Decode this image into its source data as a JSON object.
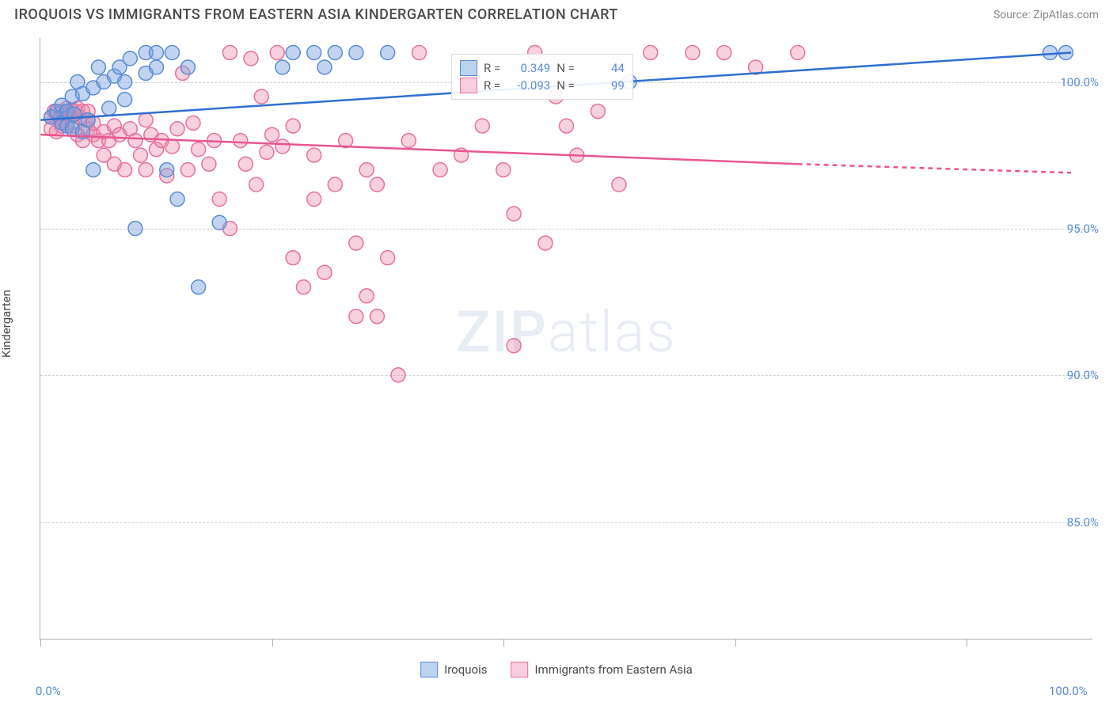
{
  "header": {
    "title": "IROQUOIS VS IMMIGRANTS FROM EASTERN ASIA KINDERGARTEN CORRELATION CHART",
    "source": "Source: ZipAtlas.com"
  },
  "axes": {
    "y_label": "Kindergarten",
    "x_min": 0.0,
    "x_max": 100.0,
    "y_min": 81.0,
    "y_max": 101.5,
    "y_ticks": [
      85.0,
      90.0,
      95.0,
      100.0
    ],
    "y_tick_labels": [
      "85.0%",
      "90.0%",
      "95.0%",
      "100.0%"
    ],
    "x_ticks": [
      0.0,
      100.0
    ],
    "x_tick_labels": [
      "0.0%",
      "100.0%"
    ],
    "x_markers": [
      0,
      22,
      44,
      66,
      88
    ],
    "grid_color": "#d0d0d0",
    "axis_color": "#b0b0b0"
  },
  "watermark": {
    "prefix": "ZIP",
    "suffix": "atlas"
  },
  "series": {
    "blue": {
      "label": "Iroquois",
      "color_fill": "rgba(120,160,220,0.45)",
      "color_stroke": "#5a8cd6",
      "swatch_fill": "#bcd3f0",
      "swatch_stroke": "#5a8cd6",
      "line_color": "#2f6fd0",
      "R": "0.349",
      "N": "44",
      "marker_radius": 9,
      "trend": {
        "x1": 0,
        "y1": 98.7,
        "x2": 98,
        "y2": 101.0
      },
      "points": [
        [
          1,
          98.8
        ],
        [
          1.5,
          99.0
        ],
        [
          2,
          98.6
        ],
        [
          2,
          99.2
        ],
        [
          2.5,
          98.5
        ],
        [
          2.5,
          99.0
        ],
        [
          3,
          98.4
        ],
        [
          3,
          99.5
        ],
        [
          3.2,
          98.9
        ],
        [
          3.5,
          100.0
        ],
        [
          4,
          98.3
        ],
        [
          4,
          99.6
        ],
        [
          4.5,
          98.7
        ],
        [
          5,
          99.8
        ],
        [
          5,
          97.0
        ],
        [
          5.5,
          100.5
        ],
        [
          6,
          100.0
        ],
        [
          6.5,
          99.1
        ],
        [
          7,
          100.2
        ],
        [
          7.5,
          100.5
        ],
        [
          8,
          99.4
        ],
        [
          8,
          100.0
        ],
        [
          8.5,
          100.8
        ],
        [
          9,
          95.0
        ],
        [
          10,
          100.3
        ],
        [
          10,
          101.0
        ],
        [
          11,
          100.5
        ],
        [
          11,
          101.0
        ],
        [
          12,
          97.0
        ],
        [
          12.5,
          101.0
        ],
        [
          13,
          96.0
        ],
        [
          14,
          100.5
        ],
        [
          15,
          93.0
        ],
        [
          17,
          95.2
        ],
        [
          23,
          100.5
        ],
        [
          24,
          101.0
        ],
        [
          26,
          101.0
        ],
        [
          27,
          100.5
        ],
        [
          28,
          101.0
        ],
        [
          30,
          101.0
        ],
        [
          33,
          101.0
        ],
        [
          56,
          100.0
        ],
        [
          96,
          101.0
        ],
        [
          97.5,
          101.0
        ]
      ]
    },
    "pink": {
      "label": "Immigrants from Eastern Asia",
      "color_fill": "rgba(235,140,170,0.4)",
      "color_stroke": "#e86fa0",
      "swatch_fill": "#f6cedd",
      "swatch_stroke": "#e86fa0",
      "line_color": "#e85590",
      "R": "-0.093",
      "N": "99",
      "marker_radius": 9,
      "trend_solid": {
        "x1": 0,
        "y1": 98.2,
        "x2": 72,
        "y2": 97.2
      },
      "trend_dash": {
        "x1": 72,
        "y1": 97.2,
        "x2": 98,
        "y2": 96.9
      },
      "points": [
        [
          1,
          98.8
        ],
        [
          1,
          98.4
        ],
        [
          1.3,
          99.0
        ],
        [
          1.5,
          98.9
        ],
        [
          1.5,
          98.3
        ],
        [
          2,
          98.8
        ],
        [
          2,
          99.0
        ],
        [
          2,
          98.5
        ],
        [
          2.3,
          98.9
        ],
        [
          2.5,
          98.6
        ],
        [
          2.5,
          99.1
        ],
        [
          3,
          98.5
        ],
        [
          3,
          98.9
        ],
        [
          3,
          99.0
        ],
        [
          3.3,
          99.0
        ],
        [
          3.5,
          98.2
        ],
        [
          3.5,
          99.1
        ],
        [
          3.7,
          98.8
        ],
        [
          4,
          98.0
        ],
        [
          4,
          99.0
        ],
        [
          4.3,
          98.7
        ],
        [
          4.5,
          98.4
        ],
        [
          4.5,
          99.0
        ],
        [
          5,
          98.2
        ],
        [
          5,
          98.6
        ],
        [
          5.5,
          98.0
        ],
        [
          6,
          98.3
        ],
        [
          6,
          97.5
        ],
        [
          6.5,
          98.0
        ],
        [
          7,
          97.2
        ],
        [
          7,
          98.5
        ],
        [
          7.5,
          98.2
        ],
        [
          8,
          97.0
        ],
        [
          8.5,
          98.4
        ],
        [
          9,
          98.0
        ],
        [
          9.5,
          97.5
        ],
        [
          10,
          98.7
        ],
        [
          10,
          97.0
        ],
        [
          10.5,
          98.2
        ],
        [
          11,
          97.7
        ],
        [
          11.5,
          98.0
        ],
        [
          12,
          96.8
        ],
        [
          12.5,
          97.8
        ],
        [
          13,
          98.4
        ],
        [
          13.5,
          100.3
        ],
        [
          14,
          97.0
        ],
        [
          14.5,
          98.6
        ],
        [
          15,
          97.7
        ],
        [
          16,
          97.2
        ],
        [
          16.5,
          98.0
        ],
        [
          17,
          96.0
        ],
        [
          18,
          101.0
        ],
        [
          18,
          95.0
        ],
        [
          19,
          98.0
        ],
        [
          19.5,
          97.2
        ],
        [
          20,
          100.8
        ],
        [
          20.5,
          96.5
        ],
        [
          21,
          99.5
        ],
        [
          21.5,
          97.6
        ],
        [
          22,
          98.2
        ],
        [
          22.5,
          101.0
        ],
        [
          23,
          97.8
        ],
        [
          24,
          94.0
        ],
        [
          24,
          98.5
        ],
        [
          25,
          93.0
        ],
        [
          26,
          96.0
        ],
        [
          26,
          97.5
        ],
        [
          27,
          93.5
        ],
        [
          28,
          96.5
        ],
        [
          29,
          98.0
        ],
        [
          30,
          94.5
        ],
        [
          30,
          92.0
        ],
        [
          31,
          97.0
        ],
        [
          31,
          92.7
        ],
        [
          32,
          92.0
        ],
        [
          32,
          96.5
        ],
        [
          33,
          94.0
        ],
        [
          34,
          90.0
        ],
        [
          35,
          98.0
        ],
        [
          36,
          101.0
        ],
        [
          38,
          97.0
        ],
        [
          40,
          97.5
        ],
        [
          41,
          100.5
        ],
        [
          42,
          98.5
        ],
        [
          44,
          97.0
        ],
        [
          45,
          95.5
        ],
        [
          45,
          91.0
        ],
        [
          47,
          101.0
        ],
        [
          48,
          94.5
        ],
        [
          49,
          99.5
        ],
        [
          50,
          98.5
        ],
        [
          51,
          97.5
        ],
        [
          53,
          99.0
        ],
        [
          55,
          96.5
        ],
        [
          58,
          101.0
        ],
        [
          62,
          101.0
        ],
        [
          65,
          101.0
        ],
        [
          68,
          100.5
        ],
        [
          72,
          101.0
        ]
      ]
    }
  },
  "legend_stats": {
    "R_label": "R =",
    "N_label": "N ="
  },
  "colors": {
    "tick_text": "#5a8cd6",
    "title_text": "#4a4a4a"
  }
}
